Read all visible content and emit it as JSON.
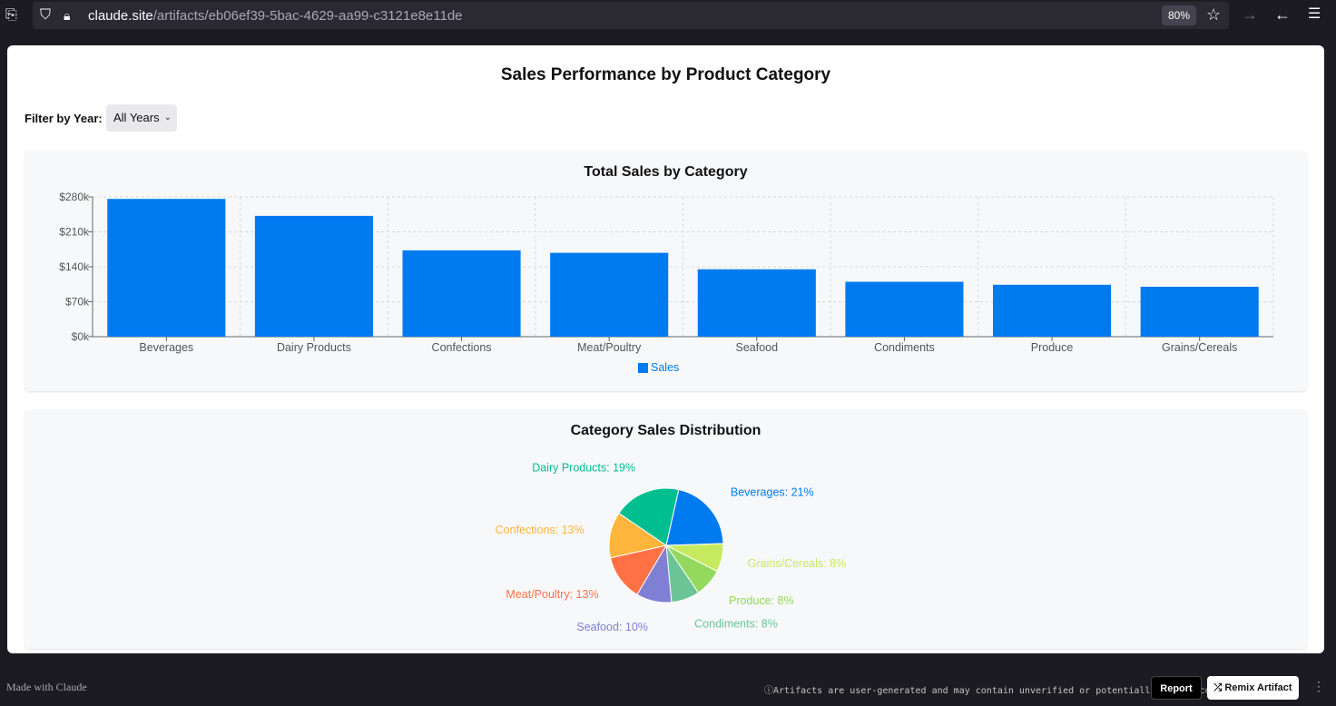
{
  "browser": {
    "url_host": "claude.site",
    "url_path": "/artifacts/eb06ef39-5bac-4629-aa99-c3121e8e11de",
    "zoom": "80%"
  },
  "page": {
    "title": "Sales Performance by Product Category",
    "filter_label": "Filter by Year:",
    "filter_value": "All Years"
  },
  "bar_card": {
    "title": "Total Sales by Category"
  },
  "pie_card": {
    "title": "Category Sales Distribution"
  },
  "chart_data": [
    {
      "type": "bar",
      "title": "Total Sales by Category",
      "categories": [
        "Beverages",
        "Dairy Products",
        "Confections",
        "Meat/Poultry",
        "Seafood",
        "Condiments",
        "Produce",
        "Grains/Cereals"
      ],
      "series": [
        {
          "name": "Sales",
          "values": [
            276000,
            242000,
            173000,
            168000,
            135000,
            110000,
            104000,
            100000
          ],
          "color": "#007bef"
        }
      ],
      "ylim": [
        0,
        280000
      ],
      "yticks": [
        0,
        70000,
        140000,
        210000,
        280000
      ],
      "ytick_labels": [
        "$0k",
        "$70k",
        "$140k",
        "$210k",
        "$280k"
      ],
      "grid": true,
      "legend": "bottom-center"
    },
    {
      "type": "pie",
      "title": "Category Sales Distribution",
      "slices": [
        {
          "label": "Beverages",
          "text": "Beverages: 21%",
          "value": 21,
          "color": "#007bef"
        },
        {
          "label": "Grains/Cereals",
          "text": "Grains/Cereals: 8%",
          "value": 8,
          "color": "#c6ea5f"
        },
        {
          "label": "Produce",
          "text": "Produce: 8%",
          "value": 8,
          "color": "#93d95d"
        },
        {
          "label": "Condiments",
          "text": "Condiments: 8%",
          "value": 8,
          "color": "#6ac495"
        },
        {
          "label": "Seafood",
          "text": "Seafood: 10%",
          "value": 10,
          "color": "#7f7fd3"
        },
        {
          "label": "Meat/Poultry",
          "text": "Meat/Poultry: 13%",
          "value": 13,
          "color": "#ff7145"
        },
        {
          "label": "Confections",
          "text": "Confections: 13%",
          "value": 13,
          "color": "#ffb43b"
        },
        {
          "label": "Dairy Products",
          "text": "Dairy Products: 19%",
          "value": 19,
          "color": "#00be8f"
        }
      ]
    }
  ],
  "footer": {
    "made_with": "Made with Claude",
    "notice": "Artifacts are user-generated and may contain unverified or potentially unsafe content.",
    "report": "Report",
    "remix": "Remix Artifact"
  }
}
